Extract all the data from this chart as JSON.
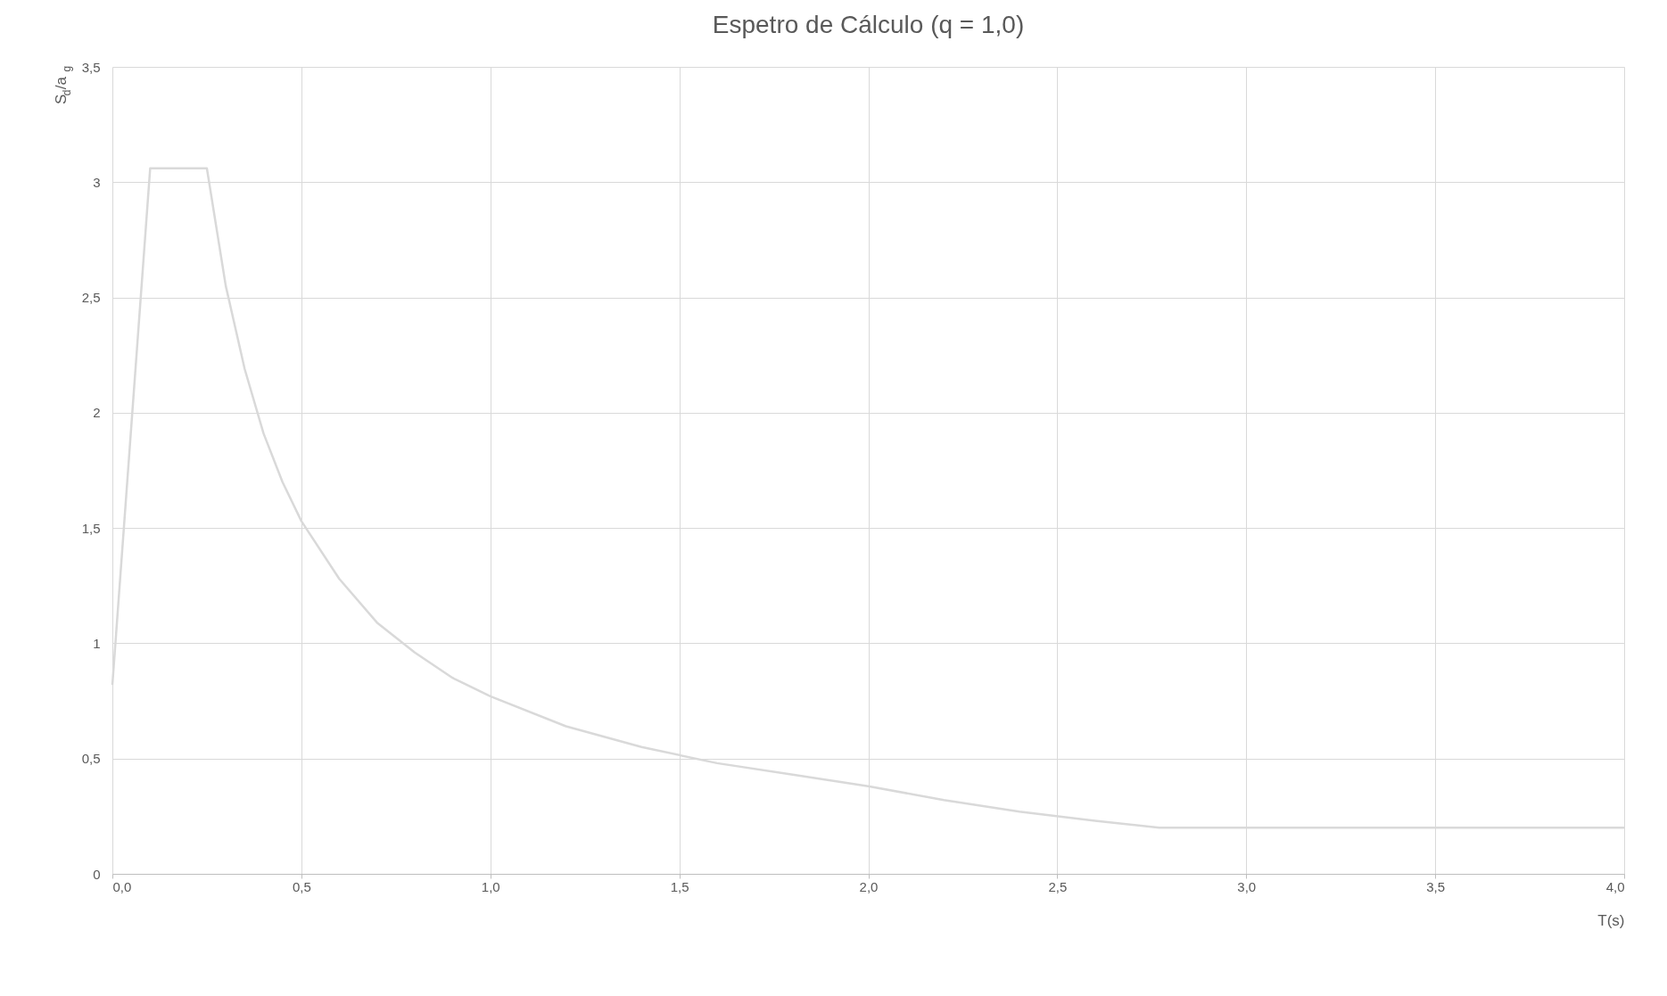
{
  "chart_data": {
    "type": "line",
    "title": "Espetro de Cálculo (q = 1,0)",
    "xlabel": "T(s)",
    "ylabel": "S$_{d}$/a$_{g}$",
    "x": [
      0,
      0.1,
      0.25,
      0.3,
      0.35,
      0.4,
      0.45,
      0.5,
      0.6,
      0.7,
      0.8,
      0.9,
      1.0,
      1.2,
      1.4,
      1.6,
      1.8,
      2.0,
      2.2,
      2.4,
      2.6,
      2.77,
      2.8,
      4.0
    ],
    "series": [
      {
        "color": "#d9d9d9",
        "values": [
          0.82,
          3.06,
          3.06,
          2.55,
          2.19,
          1.91,
          1.7,
          1.53,
          1.28,
          1.09,
          0.96,
          0.85,
          0.77,
          0.64,
          0.55,
          0.48,
          0.43,
          0.38,
          0.32,
          0.27,
          0.23,
          0.2,
          0.2,
          0.2
        ]
      }
    ],
    "xlim": [
      0,
      4
    ],
    "ylim": [
      0,
      3.5
    ],
    "xticks": [
      {
        "value": 0,
        "label": "0,0"
      },
      {
        "value": 0.5,
        "label": "0,5"
      },
      {
        "value": 1,
        "label": "1,0"
      },
      {
        "value": 1.5,
        "label": "1,5"
      },
      {
        "value": 2,
        "label": "2,0"
      },
      {
        "value": 2.5,
        "label": "2,5"
      },
      {
        "value": 3,
        "label": "3,0"
      },
      {
        "value": 3.5,
        "label": "3,5"
      },
      {
        "value": 4,
        "label": "4,0"
      }
    ],
    "yticks": [
      0,
      {
        "value": 0.5,
        "label": "0,5"
      },
      1,
      {
        "value": 1.5,
        "label": "1,5"
      },
      2,
      {
        "value": 2.5,
        "label": "2,5"
      },
      3,
      {
        "value": 3.5,
        "label": "3,5"
      }
    ],
    "grid": true,
    "marker": "none",
    "line_style": "solid"
  }
}
